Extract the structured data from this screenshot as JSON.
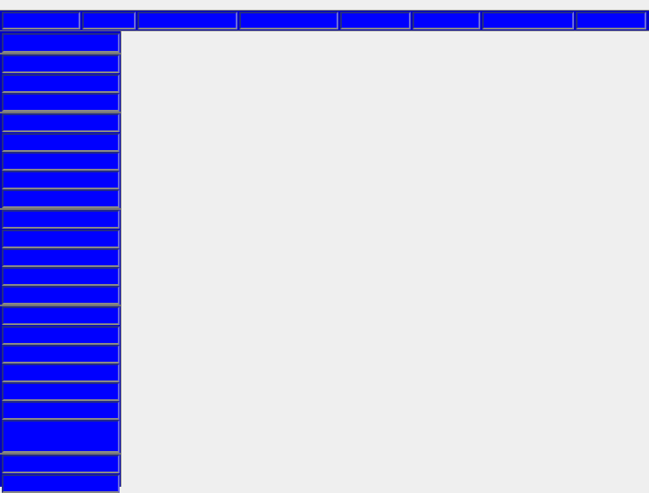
{
  "colors": {
    "background": "#efefef",
    "button_fill": "#0000ff",
    "bar_fill": "#0000c8",
    "border": "#777777"
  },
  "topbar": {
    "items": [
      {
        "label": ""
      },
      {
        "label": ""
      },
      {
        "label": ""
      },
      {
        "label": ""
      },
      {
        "label": ""
      },
      {
        "label": ""
      },
      {
        "label": ""
      },
      {
        "label": ""
      }
    ]
  },
  "sidebar": {
    "items": [
      {
        "label": ""
      },
      {
        "label": ""
      },
      {
        "label": ""
      },
      {
        "label": ""
      },
      {
        "label": ""
      },
      {
        "label": ""
      },
      {
        "label": ""
      },
      {
        "label": ""
      },
      {
        "label": ""
      },
      {
        "label": ""
      },
      {
        "label": ""
      },
      {
        "label": ""
      },
      {
        "label": ""
      },
      {
        "label": ""
      },
      {
        "label": ""
      },
      {
        "label": ""
      },
      {
        "label": ""
      },
      {
        "label": ""
      },
      {
        "label": ""
      },
      {
        "label": ""
      },
      {
        "label": ""
      },
      {
        "label": ""
      },
      {
        "label": ""
      }
    ]
  }
}
